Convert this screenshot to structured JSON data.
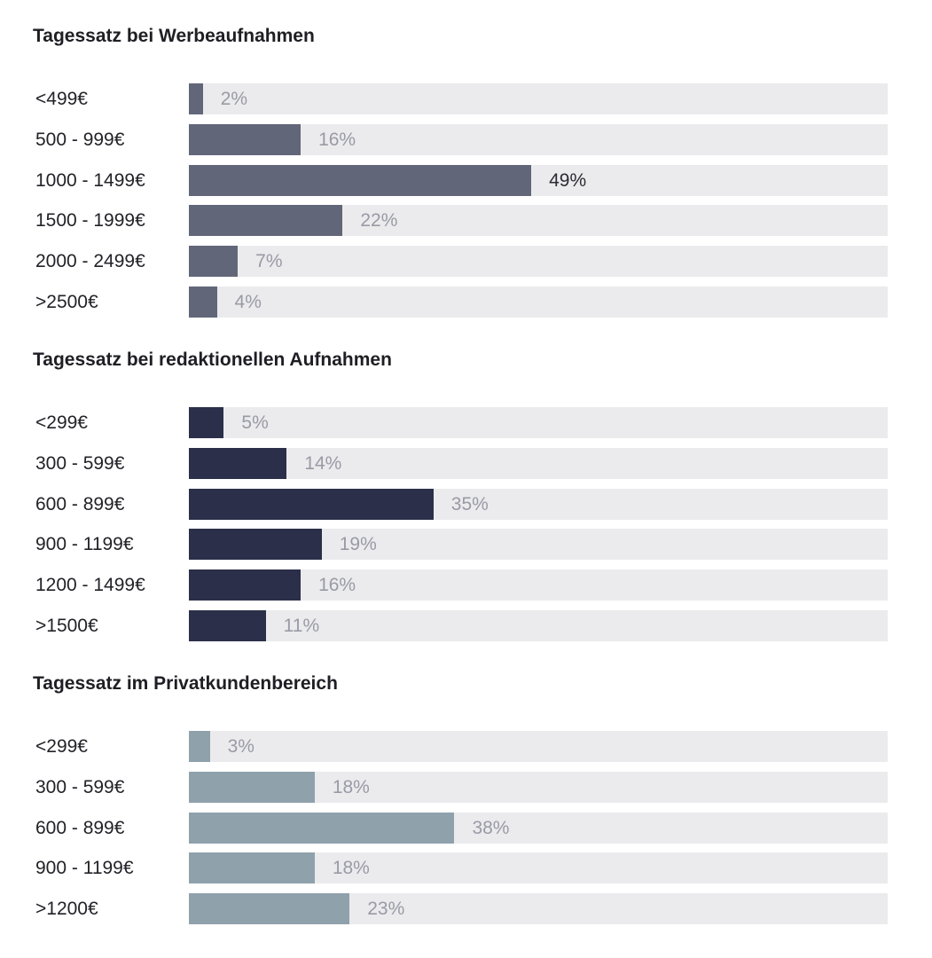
{
  "chart_data": [
    {
      "type": "bar",
      "orientation": "horizontal",
      "title": "Tagessatz bei Werbeaufnahmen",
      "categories": [
        "<499€",
        "500 - 999€",
        "1000 - 1499€",
        "1500 - 1999€",
        "2000 - 2499€",
        ">2500€"
      ],
      "values": [
        2,
        16,
        49,
        22,
        7,
        4
      ],
      "value_labels": [
        "2%",
        "16%",
        "49%",
        "22%",
        "7%",
        "4%"
      ],
      "highlight_index": 2,
      "xlim": [
        0,
        100
      ],
      "grid": false,
      "colors": {
        "bar": "#626679",
        "track": "#ebebed",
        "label": "#9a9aa6",
        "highlight_label": "#2b2b33"
      }
    },
    {
      "type": "bar",
      "orientation": "horizontal",
      "title": "Tagessatz bei redaktionellen Aufnahmen",
      "categories": [
        "<299€",
        "300 - 599€",
        "600 - 899€",
        "900 - 1199€",
        "1200 - 1499€",
        ">1500€"
      ],
      "values": [
        5,
        14,
        35,
        19,
        16,
        11
      ],
      "value_labels": [
        "5%",
        "14%",
        "35%",
        "19%",
        "16%",
        "11%"
      ],
      "xlim": [
        0,
        100
      ],
      "grid": false,
      "colors": {
        "bar": "#2c2f49",
        "track": "#ebebed",
        "label": "#9a9aa6"
      }
    },
    {
      "type": "bar",
      "orientation": "horizontal",
      "title": "Tagessatz im Privatkundenbereich",
      "categories": [
        "<299€",
        "300 - 599€",
        "600 - 899€",
        "900 - 1199€",
        ">1200€"
      ],
      "values": [
        3,
        18,
        38,
        18,
        23
      ],
      "value_labels": [
        "3%",
        "18%",
        "38%",
        "18%",
        "23%"
      ],
      "xlim": [
        0,
        100
      ],
      "grid": false,
      "colors": {
        "bar": "#8fa1ab",
        "track": "#ebebed",
        "label": "#9a9aa6"
      }
    }
  ]
}
